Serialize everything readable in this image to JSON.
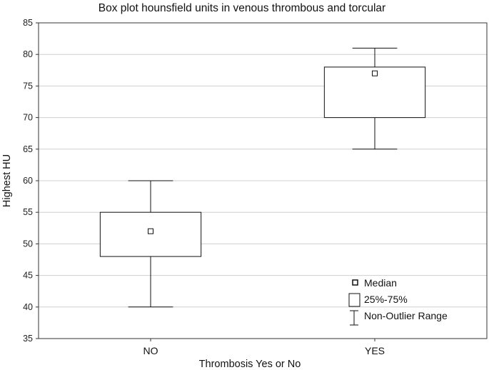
{
  "chart_data": {
    "type": "box",
    "title": "Box plot hounsfield units in venous thrombous and torcular",
    "xlabel": "Thrombosis Yes or No",
    "ylabel": "Highest HU",
    "ylim": [
      35,
      85
    ],
    "yticks": [
      35,
      40,
      45,
      50,
      55,
      60,
      65,
      70,
      75,
      80,
      85
    ],
    "grid": true,
    "categories": [
      "NO",
      "YES"
    ],
    "boxes": [
      {
        "category": "NO",
        "min": 40,
        "q1": 48,
        "median": 52,
        "q3": 55,
        "max": 60
      },
      {
        "category": "YES",
        "min": 65,
        "q1": 70,
        "median": 77,
        "q3": 78,
        "max": 81
      }
    ],
    "legend": {
      "position": "bottom-right",
      "items": [
        "Median",
        "25%-75%",
        "Non-Outlier Range"
      ]
    }
  }
}
